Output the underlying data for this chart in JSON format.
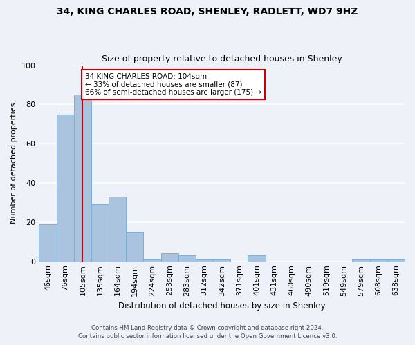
{
  "title1": "34, KING CHARLES ROAD, SHENLEY, RADLETT, WD7 9HZ",
  "title2": "Size of property relative to detached houses in Shenley",
  "xlabel": "Distribution of detached houses by size in Shenley",
  "ylabel": "Number of detached properties",
  "categories": [
    "46sqm",
    "76sqm",
    "105sqm",
    "135sqm",
    "164sqm",
    "194sqm",
    "224sqm",
    "253sqm",
    "283sqm",
    "312sqm",
    "342sqm",
    "371sqm",
    "401sqm",
    "431sqm",
    "460sqm",
    "490sqm",
    "519sqm",
    "549sqm",
    "579sqm",
    "608sqm",
    "638sqm"
  ],
  "values": [
    19,
    75,
    85,
    29,
    33,
    15,
    1,
    4,
    3,
    1,
    1,
    0,
    3,
    0,
    0,
    0,
    0,
    0,
    1,
    1,
    1
  ],
  "bar_color": "#aac4e0",
  "bar_edge_color": "#7aafd4",
  "highlight_bar_index": 2,
  "highlight_line_color": "#cc0000",
  "ylim": [
    0,
    100
  ],
  "yticks": [
    0,
    20,
    40,
    60,
    80,
    100
  ],
  "annotation_text": "34 KING CHARLES ROAD: 104sqm\n← 33% of detached houses are smaller (87)\n66% of semi-detached houses are larger (175) →",
  "annotation_box_color": "#ffffff",
  "annotation_border_color": "#cc0000",
  "footer1": "Contains HM Land Registry data © Crown copyright and database right 2024.",
  "footer2": "Contains public sector information licensed under the Open Government Licence v3.0.",
  "bg_color": "#eef2f8",
  "grid_color": "#ffffff"
}
